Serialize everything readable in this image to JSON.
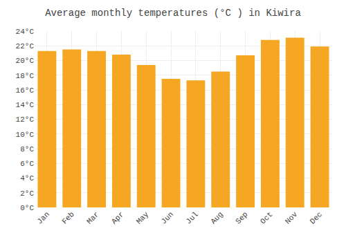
{
  "chart_data": {
    "type": "bar",
    "title": "Average monthly temperatures (°C ) in Kiwira",
    "categories": [
      "Jan",
      "Feb",
      "Mar",
      "Apr",
      "May",
      "Jun",
      "Jul",
      "Aug",
      "Sep",
      "Oct",
      "Nov",
      "Dec"
    ],
    "values": [
      21.3,
      21.5,
      21.3,
      20.8,
      19.4,
      17.5,
      17.3,
      18.5,
      20.7,
      22.8,
      23.1,
      21.9
    ],
    "color": "#F5A623",
    "ylim": [
      0,
      24
    ],
    "yticks": [
      {
        "value": 0,
        "label": "0°C"
      },
      {
        "value": 2,
        "label": "2°C"
      },
      {
        "value": 4,
        "label": "4°C"
      },
      {
        "value": 6,
        "label": "6°C"
      },
      {
        "value": 8,
        "label": "8°C"
      },
      {
        "value": 10,
        "label": "10°C"
      },
      {
        "value": 12,
        "label": "12°C"
      },
      {
        "value": 14,
        "label": "14°C"
      },
      {
        "value": 16,
        "label": "16°C"
      },
      {
        "value": 18,
        "label": "18°C"
      },
      {
        "value": 20,
        "label": "20°C"
      },
      {
        "value": 22,
        "label": "22°C"
      },
      {
        "value": 24,
        "label": "24°C"
      }
    ],
    "grid": true
  }
}
